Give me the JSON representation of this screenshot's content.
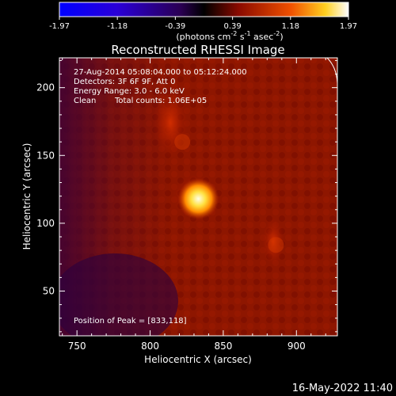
{
  "colorbar": {
    "ticks": [
      "-1.97",
      "-1.18",
      "-0.39",
      "0.39",
      "1.18",
      "1.97"
    ],
    "units_main": "(photons cm",
    "units_exp1": "-2",
    "units_mid": " s",
    "units_exp2": "-1",
    "units_mid2": " asec",
    "units_exp3": "-2",
    "units_end": ")"
  },
  "chart_data": {
    "type": "heatmap",
    "title": "Reconstructed RHESSI Image",
    "xlabel": "Heliocentric X (arcsec)",
    "ylabel": "Heliocentric Y (arcsec)",
    "xlim": [
      738,
      928
    ],
    "ylim": [
      17,
      222
    ],
    "x_ticks": [
      750,
      800,
      850,
      900
    ],
    "y_ticks": [
      50,
      100,
      150,
      200
    ],
    "colorbar_range": [
      -1.97,
      1.97
    ],
    "sources": [
      {
        "x": 833,
        "y": 118,
        "value": 1.97
      },
      {
        "x": 822,
        "y": 160,
        "value": 0.55
      },
      {
        "x": 886,
        "y": 84,
        "value": 0.6
      }
    ],
    "annotations": [
      "27-Aug-2014 05:08:04.000 to 05:12:24.000",
      "Detectors: 3F 6F 9F, Att 0",
      "Energy Range: 3.0 - 6.0 keV",
      "Clean",
      "Total counts: 1.06E+05",
      "Position of Peak = [833,118]"
    ],
    "timestamp": "16-May-2022 11:40"
  }
}
